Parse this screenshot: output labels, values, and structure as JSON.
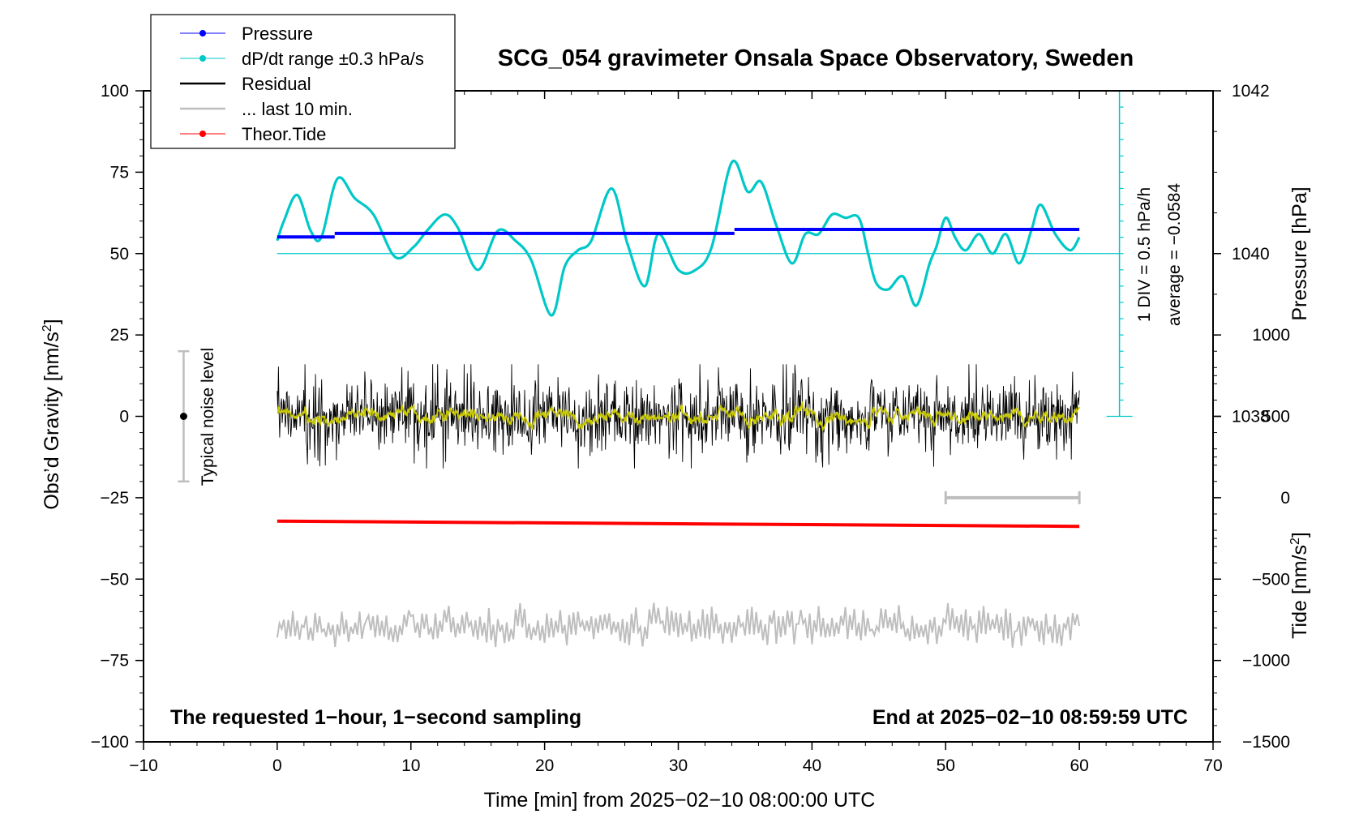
{
  "chart_data": {
    "type": "line",
    "title": "SCG_054 gravimeter Onsala Space Observatory, Sweden",
    "xlabel": "Time [min] from 2025−02−10 08:00:00 UTC",
    "ylabel_left": "Obs’d Gravity [nm/s",
    "ylabel_left_sup": "2",
    "ylabel_left_end": "]",
    "ylabel_right_top": "Pressure [hPa]",
    "ylabel_right_bottom": "Tide [nm/s",
    "ylabel_right_bottom_sup": "2",
    "ylabel_right_bottom_end": "]",
    "xlim": [
      -10,
      70
    ],
    "ylim": [
      -100,
      100
    ],
    "x_ticks": [
      -10,
      0,
      10,
      20,
      30,
      40,
      50,
      60,
      70
    ],
    "x_tick_labels": [
      "−10",
      "0",
      "10",
      "20",
      "30",
      "40",
      "50",
      "60",
      "70"
    ],
    "y_ticks": [
      100,
      75,
      50,
      25,
      0,
      -25,
      -50,
      -75,
      -100
    ],
    "y_tick_labels": [
      "100",
      "75",
      "50",
      "25",
      "0",
      "−25",
      "−50",
      "−75",
      "−100"
    ],
    "pressure_axis": {
      "ticks": [
        1042,
        1040,
        1038
      ],
      "tick_labels": [
        "1042",
        "1040",
        "1038"
      ],
      "ref_value": 1040,
      "ref_gravity": 50,
      "gravity_per_hpa": 25
    },
    "tide_axis": {
      "ticks": [
        1000,
        500,
        0,
        -500,
        -1000,
        -1500
      ],
      "tick_labels": [
        "1000",
        "500",
        "0",
        "−500",
        "−1000",
        "−1500"
      ],
      "ref_value": -1500,
      "ref_gravity": -100,
      "gravity_per_unit": 0.05
    },
    "legend": [
      {
        "label": "Pressure",
        "color": "#0000ff",
        "marker": true
      },
      {
        "label": "dP/dt range ±0.3 hPa/s",
        "color": "#00c8c8",
        "marker": true
      },
      {
        "label": "Residual",
        "color": "#000000",
        "marker": false
      },
      {
        "label": "... last 10 min.",
        "color": "#bebebe",
        "marker": false
      },
      {
        "label": "Theor.Tide",
        "color": "#ff0000",
        "marker": true
      }
    ],
    "annotations": {
      "bottom_left": "The requested 1−hour, 1−second sampling",
      "bottom_right": "End at 2025−02−10 08:59:59 UTC",
      "noise_label": "Typical noise level",
      "div_label": "1 DIV = 0.5 hPa/h",
      "avg_label": "average = −0.0584"
    },
    "noise_bar": {
      "x": -7,
      "center": 0,
      "half_range": 20
    },
    "dpdt_scale": {
      "x": 63,
      "y_bottom": 0,
      "y_top": 100,
      "baseline": 50,
      "div": 5
    },
    "ten_min_bracket": {
      "x_start": 50,
      "x_end": 60,
      "y": -25
    },
    "series": [
      {
        "name": "Pressure",
        "color": "#0000ff",
        "segments": [
          {
            "x": [
              0,
              4.3
            ],
            "y": [
              55.1,
              55.1
            ]
          },
          {
            "x": [
              4.3,
              34.2
            ],
            "y": [
              56.2,
              56.2
            ]
          },
          {
            "x": [
              34.2,
              60
            ],
            "y": [
              57.4,
              57.4
            ]
          }
        ]
      },
      {
        "name": "dP/dt",
        "color": "#00c8c8",
        "x": [
          0,
          0.5,
          1.5,
          2.5,
          3.3,
          4.5,
          5.8,
          7.2,
          8.8,
          10.2,
          11.2,
          12.5,
          13.5,
          15,
          16.5,
          17.8,
          19,
          20.5,
          21.5,
          22.5,
          23.5,
          25,
          26.2,
          27.5,
          28.5,
          30,
          31.3,
          32.5,
          34,
          35.2,
          36.2,
          37.3,
          38.5,
          39.5,
          40.5,
          41.5,
          42.5,
          43.5,
          44.2,
          44.8,
          45.7,
          46.8,
          47.8,
          48.8,
          49.3,
          50,
          50.7,
          51.5,
          52.5,
          53.5,
          54.5,
          55.5,
          56.4,
          57.1,
          58.2,
          59.3,
          60
        ],
        "y": [
          54,
          60,
          68,
          57,
          55,
          73,
          67,
          62,
          49,
          52,
          57,
          62,
          58,
          45,
          57,
          54,
          48,
          31,
          46,
          51,
          54,
          70,
          53,
          40,
          56,
          45,
          45,
          52,
          78,
          69,
          72,
          59,
          47,
          56,
          56,
          62,
          61,
          61,
          50,
          41,
          39,
          43,
          34,
          47,
          52,
          61,
          55,
          51,
          56,
          50,
          56,
          47,
          57,
          65,
          56,
          51,
          55
        ]
      },
      {
        "name": "Residual",
        "color": "#000000",
        "x_range": [
          0,
          60
        ],
        "noise_amplitude": 9,
        "seed": 7
      },
      {
        "name": "Residual smoothed",
        "color": "#c8c800",
        "x_range": [
          0,
          60
        ]
      },
      {
        "name": "Theor.Tide",
        "color": "#ff0000",
        "x": [
          0,
          60
        ],
        "y": [
          -32.2,
          -33.8
        ]
      },
      {
        "name": "... last 10 min.",
        "color": "#bebebe",
        "x_range": [
          0,
          60
        ],
        "offset": -64.5,
        "amplitude": 8,
        "seed": 11
      }
    ]
  }
}
